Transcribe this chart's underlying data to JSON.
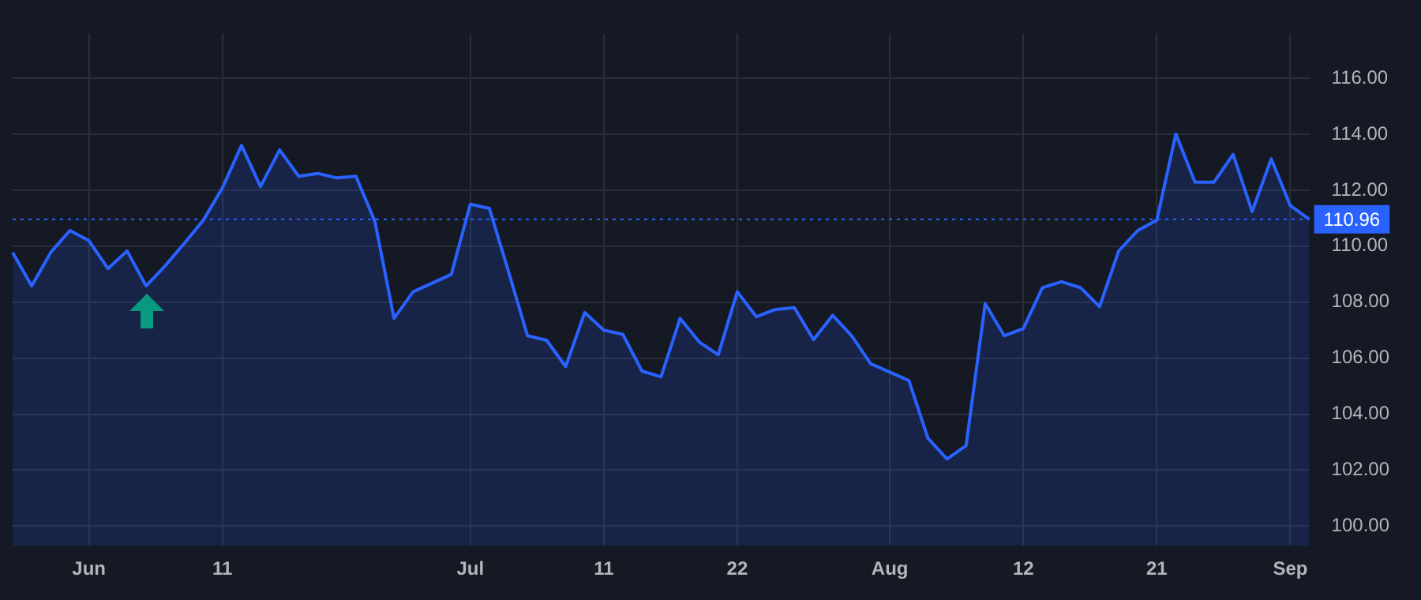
{
  "chart_data": {
    "type": "area",
    "categories": [
      null,
      null,
      null,
      null,
      "Jun",
      null,
      null,
      null,
      null,
      null,
      null,
      "11",
      null,
      null,
      null,
      null,
      null,
      null,
      null,
      null,
      null,
      null,
      null,
      null,
      "Jul",
      null,
      null,
      null,
      null,
      null,
      null,
      "11",
      null,
      null,
      null,
      null,
      null,
      null,
      "22",
      null,
      null,
      null,
      null,
      null,
      null,
      null,
      "Aug",
      null,
      null,
      null,
      null,
      null,
      null,
      "12",
      null,
      null,
      null,
      null,
      null,
      null,
      "21",
      null,
      null,
      null,
      null,
      null,
      null,
      "Sep",
      null
    ],
    "series": [
      {
        "color": "#2962ff",
        "values": [
          109.78,
          108.58,
          109.78,
          110.56,
          110.2,
          109.2,
          109.83,
          108.58,
          109.3,
          110.1,
          110.93,
          112.08,
          113.6,
          112.13,
          113.44,
          112.5,
          112.6,
          112.44,
          112.5,
          110.88,
          107.42,
          108.37,
          108.68,
          108.99,
          111.5,
          111.35,
          109.1,
          106.8,
          106.64,
          105.7,
          107.63,
          107.0,
          106.85,
          105.54,
          105.33,
          107.42,
          106.58,
          106.12,
          108.37,
          107.48,
          107.74,
          107.8,
          106.66,
          107.53,
          106.8,
          105.8,
          105.5,
          105.2,
          103.14,
          102.4,
          102.88,
          107.95,
          106.8,
          107.06,
          108.52,
          108.73,
          108.52,
          107.84,
          109.83,
          110.56,
          110.93,
          114.01,
          112.29,
          112.29,
          113.28,
          111.24,
          113.12,
          111.45,
          110.96
        ]
      }
    ],
    "ylim": [
      99.3,
      117.6
    ],
    "yticks": [
      {
        "value": 100,
        "label": "100.00"
      },
      {
        "value": 102,
        "label": "102.00"
      },
      {
        "value": 104,
        "label": "104.00"
      },
      {
        "value": 106,
        "label": "106.00"
      },
      {
        "value": 108,
        "label": "108.00"
      },
      {
        "value": 110,
        "label": "110.00"
      },
      {
        "value": 112,
        "label": "112.00"
      },
      {
        "value": 114,
        "label": "114.00"
      },
      {
        "value": 116,
        "label": "116.00"
      }
    ],
    "ref_lines": [
      {
        "axis": "y",
        "value": 110.96,
        "label": "110.96",
        "color": "#2962ff",
        "line_style": "dotted"
      }
    ],
    "grid": true,
    "legend": false,
    "marker": "none",
    "line_style": "solid"
  }
}
